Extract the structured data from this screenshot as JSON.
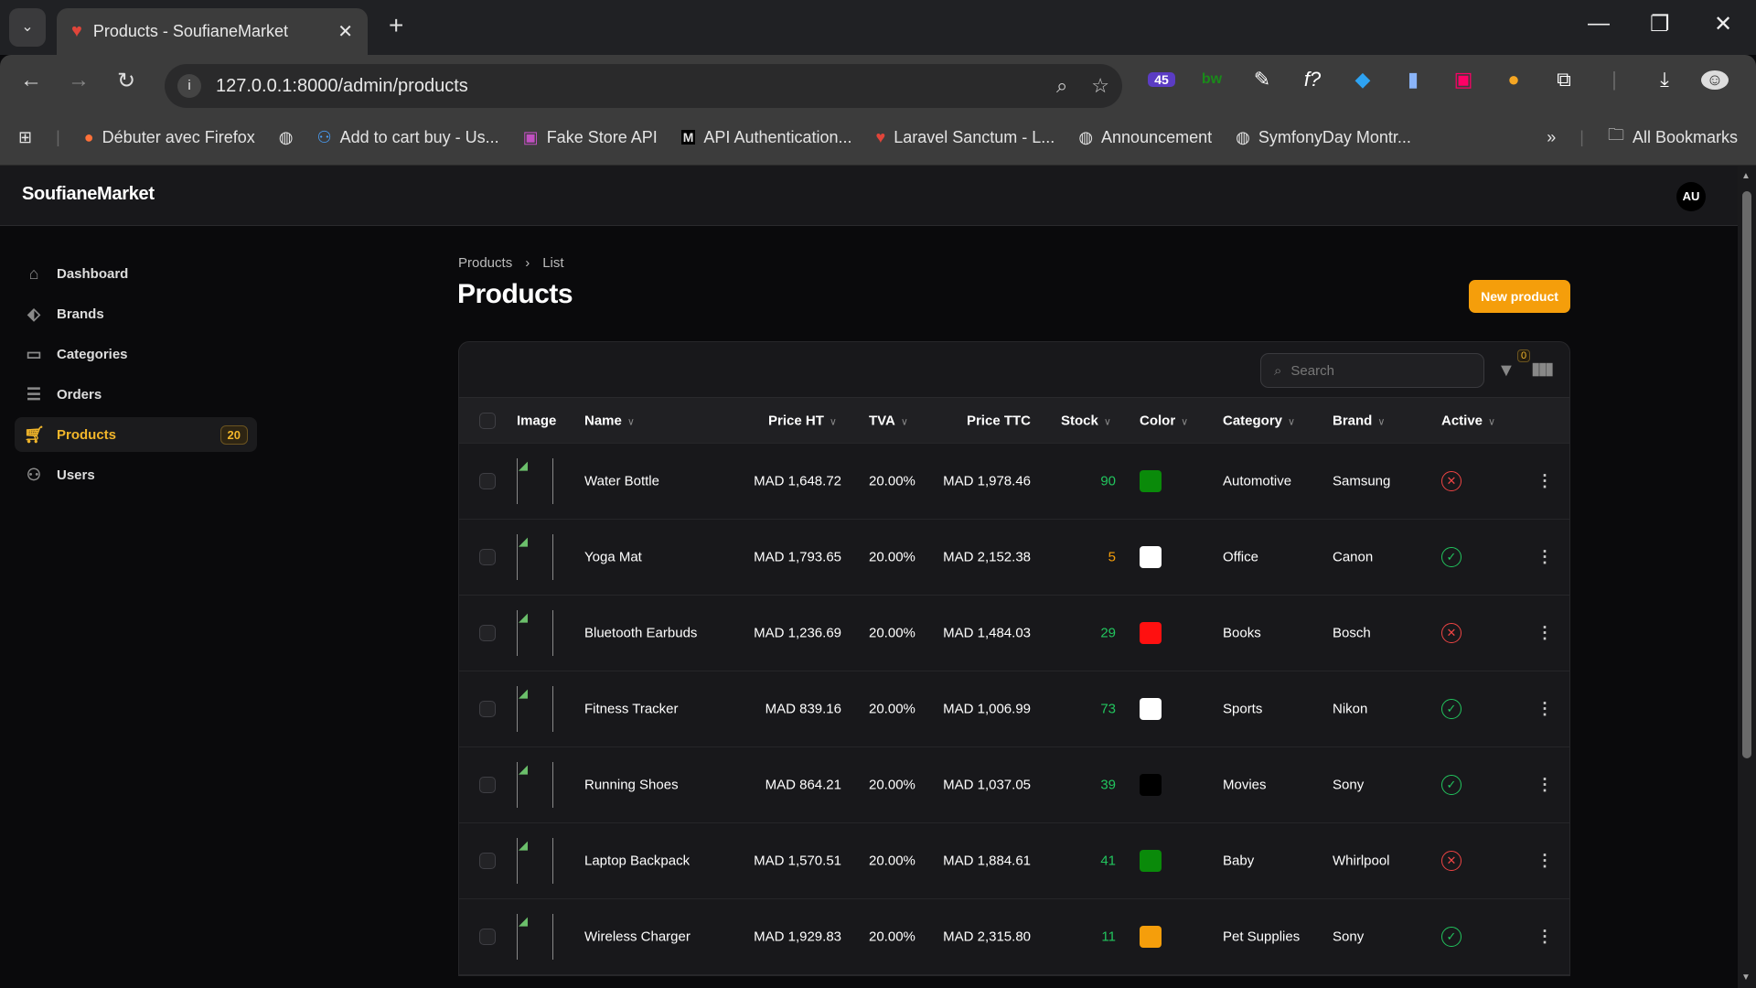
{
  "browser": {
    "tab_title": "Products - SoufianeMarket",
    "url": "127.0.0.1:8000/admin/products",
    "ext_badge": "45",
    "bookmarks": [
      "Débuter avec Firefox",
      "",
      "Add to cart buy - Us...",
      "Fake Store API",
      "API Authentication...",
      "Laravel Sanctum - L...",
      "Announcement",
      "SymfonyDay Montr..."
    ],
    "all_bookmarks": "All Bookmarks"
  },
  "app": {
    "brand": "SoufianeMarket",
    "avatar": "AU"
  },
  "sidebar": {
    "items": [
      {
        "label": "Dashboard"
      },
      {
        "label": "Brands"
      },
      {
        "label": "Categories"
      },
      {
        "label": "Orders"
      },
      {
        "label": "Products",
        "badge": "20"
      },
      {
        "label": "Users"
      }
    ]
  },
  "page": {
    "breadcrumb": [
      "Products",
      "List"
    ],
    "title": "Products",
    "new_button": "New product"
  },
  "table": {
    "search_placeholder": "Search",
    "filter_count": "0",
    "headers": {
      "image": "Image",
      "name": "Name",
      "price_ht": "Price HT",
      "tva": "TVA",
      "price_ttc": "Price TTC",
      "stock": "Stock",
      "color": "Color",
      "category": "Category",
      "brand": "Brand",
      "active": "Active"
    },
    "rows": [
      {
        "name": "Water Bottle",
        "price_ht": "MAD 1,648.72",
        "tva": "20.00%",
        "price_ttc": "MAD 1,978.46",
        "stock": "90",
        "color": "#0a8a0a",
        "category": "Automotive",
        "brand": "Samsung",
        "active": false
      },
      {
        "name": "Yoga Mat",
        "price_ht": "MAD 1,793.65",
        "tva": "20.00%",
        "price_ttc": "MAD 2,152.38",
        "stock": "5",
        "color": "#ffffff",
        "category": "Office",
        "brand": "Canon",
        "active": true
      },
      {
        "name": "Bluetooth Earbuds",
        "price_ht": "MAD 1,236.69",
        "tva": "20.00%",
        "price_ttc": "MAD 1,484.03",
        "stock": "29",
        "color": "#ff1010",
        "category": "Books",
        "brand": "Bosch",
        "active": false
      },
      {
        "name": "Fitness Tracker",
        "price_ht": "MAD 839.16",
        "tva": "20.00%",
        "price_ttc": "MAD 1,006.99",
        "stock": "73",
        "color": "#ffffff",
        "category": "Sports",
        "brand": "Nikon",
        "active": true
      },
      {
        "name": "Running Shoes",
        "price_ht": "MAD 864.21",
        "tva": "20.00%",
        "price_ttc": "MAD 1,037.05",
        "stock": "39",
        "color": "#000000",
        "category": "Movies",
        "brand": "Sony",
        "active": true
      },
      {
        "name": "Laptop Backpack",
        "price_ht": "MAD 1,570.51",
        "tva": "20.00%",
        "price_ttc": "MAD 1,884.61",
        "stock": "41",
        "color": "#0a8a0a",
        "category": "Baby",
        "brand": "Whirlpool",
        "active": false
      },
      {
        "name": "Wireless Charger",
        "price_ht": "MAD 1,929.83",
        "tva": "20.00%",
        "price_ttc": "MAD 2,315.80",
        "stock": "11",
        "color": "#f59e0b",
        "category": "Pet Supplies",
        "brand": "Sony",
        "active": true
      }
    ]
  },
  "colors": {
    "accent": "#f59e0b",
    "stock_ok": "#22c55e",
    "stock_low": "#f59e0b",
    "active_true": "#22c55e",
    "active_false": "#ef4444"
  }
}
